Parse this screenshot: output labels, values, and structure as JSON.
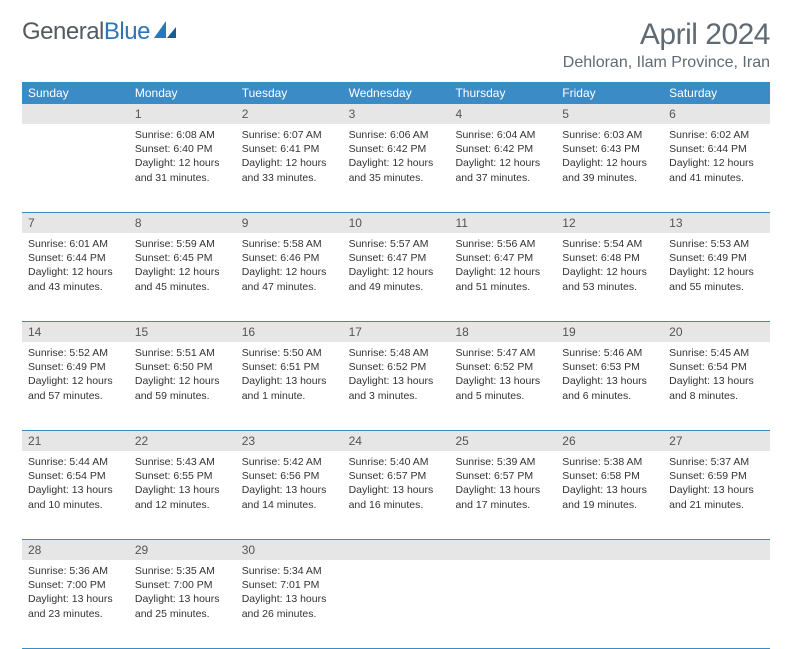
{
  "logo": {
    "text1": "General",
    "text2": "Blue"
  },
  "title": "April 2024",
  "location": "Dehloran, Ilam Province, Iran",
  "colors": {
    "header_bg": "#3b8bc6",
    "header_text": "#ffffff",
    "daynum_bg": "#e6e6e6",
    "rule": "#3b8bc6",
    "body_text": "#333333",
    "title_text": "#606a73",
    "logo_gray": "#555a60",
    "logo_blue": "#2e75b6"
  },
  "day_names": [
    "Sunday",
    "Monday",
    "Tuesday",
    "Wednesday",
    "Thursday",
    "Friday",
    "Saturday"
  ],
  "weeks": [
    {
      "nums": [
        "",
        "1",
        "2",
        "3",
        "4",
        "5",
        "6"
      ],
      "cells": [
        null,
        {
          "sunrise": "Sunrise: 6:08 AM",
          "sunset": "Sunset: 6:40 PM",
          "d1": "Daylight: 12 hours",
          "d2": "and 31 minutes."
        },
        {
          "sunrise": "Sunrise: 6:07 AM",
          "sunset": "Sunset: 6:41 PM",
          "d1": "Daylight: 12 hours",
          "d2": "and 33 minutes."
        },
        {
          "sunrise": "Sunrise: 6:06 AM",
          "sunset": "Sunset: 6:42 PM",
          "d1": "Daylight: 12 hours",
          "d2": "and 35 minutes."
        },
        {
          "sunrise": "Sunrise: 6:04 AM",
          "sunset": "Sunset: 6:42 PM",
          "d1": "Daylight: 12 hours",
          "d2": "and 37 minutes."
        },
        {
          "sunrise": "Sunrise: 6:03 AM",
          "sunset": "Sunset: 6:43 PM",
          "d1": "Daylight: 12 hours",
          "d2": "and 39 minutes."
        },
        {
          "sunrise": "Sunrise: 6:02 AM",
          "sunset": "Sunset: 6:44 PM",
          "d1": "Daylight: 12 hours",
          "d2": "and 41 minutes."
        }
      ]
    },
    {
      "nums": [
        "7",
        "8",
        "9",
        "10",
        "11",
        "12",
        "13"
      ],
      "cells": [
        {
          "sunrise": "Sunrise: 6:01 AM",
          "sunset": "Sunset: 6:44 PM",
          "d1": "Daylight: 12 hours",
          "d2": "and 43 minutes."
        },
        {
          "sunrise": "Sunrise: 5:59 AM",
          "sunset": "Sunset: 6:45 PM",
          "d1": "Daylight: 12 hours",
          "d2": "and 45 minutes."
        },
        {
          "sunrise": "Sunrise: 5:58 AM",
          "sunset": "Sunset: 6:46 PM",
          "d1": "Daylight: 12 hours",
          "d2": "and 47 minutes."
        },
        {
          "sunrise": "Sunrise: 5:57 AM",
          "sunset": "Sunset: 6:47 PM",
          "d1": "Daylight: 12 hours",
          "d2": "and 49 minutes."
        },
        {
          "sunrise": "Sunrise: 5:56 AM",
          "sunset": "Sunset: 6:47 PM",
          "d1": "Daylight: 12 hours",
          "d2": "and 51 minutes."
        },
        {
          "sunrise": "Sunrise: 5:54 AM",
          "sunset": "Sunset: 6:48 PM",
          "d1": "Daylight: 12 hours",
          "d2": "and 53 minutes."
        },
        {
          "sunrise": "Sunrise: 5:53 AM",
          "sunset": "Sunset: 6:49 PM",
          "d1": "Daylight: 12 hours",
          "d2": "and 55 minutes."
        }
      ]
    },
    {
      "nums": [
        "14",
        "15",
        "16",
        "17",
        "18",
        "19",
        "20"
      ],
      "cells": [
        {
          "sunrise": "Sunrise: 5:52 AM",
          "sunset": "Sunset: 6:49 PM",
          "d1": "Daylight: 12 hours",
          "d2": "and 57 minutes."
        },
        {
          "sunrise": "Sunrise: 5:51 AM",
          "sunset": "Sunset: 6:50 PM",
          "d1": "Daylight: 12 hours",
          "d2": "and 59 minutes."
        },
        {
          "sunrise": "Sunrise: 5:50 AM",
          "sunset": "Sunset: 6:51 PM",
          "d1": "Daylight: 13 hours",
          "d2": "and 1 minute."
        },
        {
          "sunrise": "Sunrise: 5:48 AM",
          "sunset": "Sunset: 6:52 PM",
          "d1": "Daylight: 13 hours",
          "d2": "and 3 minutes."
        },
        {
          "sunrise": "Sunrise: 5:47 AM",
          "sunset": "Sunset: 6:52 PM",
          "d1": "Daylight: 13 hours",
          "d2": "and 5 minutes."
        },
        {
          "sunrise": "Sunrise: 5:46 AM",
          "sunset": "Sunset: 6:53 PM",
          "d1": "Daylight: 13 hours",
          "d2": "and 6 minutes."
        },
        {
          "sunrise": "Sunrise: 5:45 AM",
          "sunset": "Sunset: 6:54 PM",
          "d1": "Daylight: 13 hours",
          "d2": "and 8 minutes."
        }
      ]
    },
    {
      "nums": [
        "21",
        "22",
        "23",
        "24",
        "25",
        "26",
        "27"
      ],
      "cells": [
        {
          "sunrise": "Sunrise: 5:44 AM",
          "sunset": "Sunset: 6:54 PM",
          "d1": "Daylight: 13 hours",
          "d2": "and 10 minutes."
        },
        {
          "sunrise": "Sunrise: 5:43 AM",
          "sunset": "Sunset: 6:55 PM",
          "d1": "Daylight: 13 hours",
          "d2": "and 12 minutes."
        },
        {
          "sunrise": "Sunrise: 5:42 AM",
          "sunset": "Sunset: 6:56 PM",
          "d1": "Daylight: 13 hours",
          "d2": "and 14 minutes."
        },
        {
          "sunrise": "Sunrise: 5:40 AM",
          "sunset": "Sunset: 6:57 PM",
          "d1": "Daylight: 13 hours",
          "d2": "and 16 minutes."
        },
        {
          "sunrise": "Sunrise: 5:39 AM",
          "sunset": "Sunset: 6:57 PM",
          "d1": "Daylight: 13 hours",
          "d2": "and 17 minutes."
        },
        {
          "sunrise": "Sunrise: 5:38 AM",
          "sunset": "Sunset: 6:58 PM",
          "d1": "Daylight: 13 hours",
          "d2": "and 19 minutes."
        },
        {
          "sunrise": "Sunrise: 5:37 AM",
          "sunset": "Sunset: 6:59 PM",
          "d1": "Daylight: 13 hours",
          "d2": "and 21 minutes."
        }
      ]
    },
    {
      "nums": [
        "28",
        "29",
        "30",
        "",
        "",
        "",
        ""
      ],
      "cells": [
        {
          "sunrise": "Sunrise: 5:36 AM",
          "sunset": "Sunset: 7:00 PM",
          "d1": "Daylight: 13 hours",
          "d2": "and 23 minutes."
        },
        {
          "sunrise": "Sunrise: 5:35 AM",
          "sunset": "Sunset: 7:00 PM",
          "d1": "Daylight: 13 hours",
          "d2": "and 25 minutes."
        },
        {
          "sunrise": "Sunrise: 5:34 AM",
          "sunset": "Sunset: 7:01 PM",
          "d1": "Daylight: 13 hours",
          "d2": "and 26 minutes."
        },
        null,
        null,
        null,
        null
      ]
    }
  ]
}
